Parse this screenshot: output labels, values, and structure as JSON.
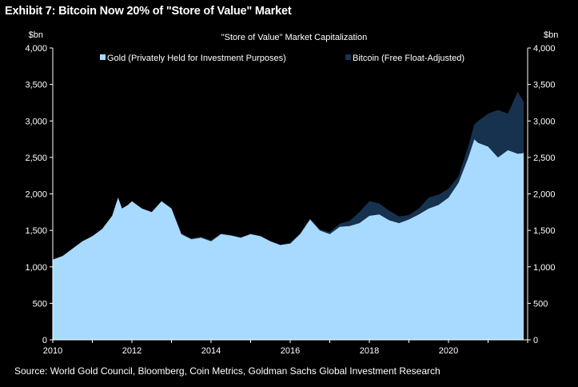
{
  "exhibit_title": "Exhibit 7: Bitcoin Now 20% of \"Store of Value\" Market",
  "source": "Source: World Gold Council, Bloomberg, Coin Metrics, Goldman Sachs Global Investment Research",
  "colors": {
    "gold": "#a8daff",
    "bitcoin": "#17324f",
    "background": "#000000",
    "text": "#ffffff"
  },
  "chart_data": {
    "type": "area",
    "stacked": true,
    "title": "\"Store of Value\" Market Capitalization",
    "y_unit_left": "$bn",
    "y_unit_right": "$bn",
    "ylim": [
      0,
      4000
    ],
    "xlim": [
      2010,
      2022
    ],
    "y_ticks": [
      "4,000",
      "3,500",
      "3,000",
      "2,500",
      "2,000",
      "1,500",
      "1,000",
      "500",
      "0"
    ],
    "y_tick_values": [
      4000,
      3500,
      3000,
      2500,
      2000,
      1500,
      1000,
      500,
      0
    ],
    "x_ticks": [
      "2010",
      "2012",
      "2014",
      "2016",
      "2018",
      "2020"
    ],
    "x_tick_values": [
      2010,
      2012,
      2014,
      2016,
      2018,
      2020
    ],
    "legend": [
      {
        "label": "Gold (Privately Held for Investment Purposes)",
        "color": "#a8daff"
      },
      {
        "label": "Bitcoin (Free Float-Adjusted)",
        "color": "#17324f"
      }
    ],
    "x": [
      2010.0,
      2010.25,
      2010.5,
      2010.75,
      2011.0,
      2011.25,
      2011.5,
      2011.65,
      2011.75,
      2011.9,
      2012.0,
      2012.25,
      2012.5,
      2012.75,
      2013.0,
      2013.25,
      2013.5,
      2013.75,
      2014.0,
      2014.25,
      2014.5,
      2014.75,
      2015.0,
      2015.25,
      2015.5,
      2015.75,
      2016.0,
      2016.25,
      2016.5,
      2016.75,
      2017.0,
      2017.25,
      2017.5,
      2017.75,
      2018.0,
      2018.25,
      2018.5,
      2018.75,
      2019.0,
      2019.25,
      2019.5,
      2019.75,
      2020.0,
      2020.25,
      2020.5,
      2020.65,
      2020.75,
      2021.0,
      2021.25,
      2021.5,
      2021.75,
      2021.9
    ],
    "series": [
      {
        "name": "Gold (Privately Held for Investment Purposes)",
        "values": [
          1100,
          1150,
          1250,
          1350,
          1420,
          1520,
          1700,
          1950,
          1800,
          1850,
          1900,
          1800,
          1750,
          1900,
          1800,
          1450,
          1380,
          1400,
          1350,
          1450,
          1430,
          1400,
          1450,
          1420,
          1350,
          1300,
          1320,
          1450,
          1650,
          1500,
          1450,
          1550,
          1560,
          1600,
          1700,
          1720,
          1640,
          1600,
          1650,
          1720,
          1800,
          1850,
          1950,
          2150,
          2500,
          2750,
          2700,
          2650,
          2500,
          2600,
          2550,
          2560
        ]
      },
      {
        "name": "Bitcoin (Free Float-Adjusted)",
        "values": [
          0,
          0,
          0,
          0,
          0,
          0,
          0,
          0,
          0,
          0,
          0,
          0,
          0,
          0,
          0,
          5,
          10,
          15,
          15,
          10,
          8,
          5,
          5,
          5,
          5,
          5,
          10,
          10,
          12,
          15,
          25,
          40,
          70,
          150,
          200,
          150,
          130,
          90,
          60,
          80,
          150,
          140,
          120,
          90,
          150,
          200,
          300,
          450,
          650,
          500,
          850,
          700
        ]
      }
    ]
  }
}
